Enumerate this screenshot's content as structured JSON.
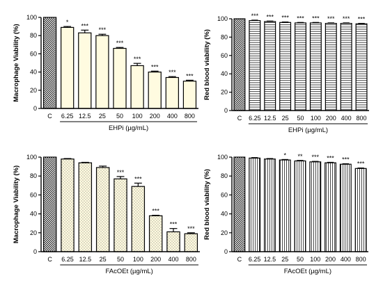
{
  "chart_data": [
    {
      "type": "bar",
      "categories": [
        "C",
        "6.25",
        "12.5",
        "25",
        "50",
        "100",
        "200",
        "400",
        "800"
      ],
      "values": [
        100,
        89,
        83,
        80,
        66,
        47,
        40,
        34,
        30
      ],
      "errors": [
        0,
        1,
        3,
        1.5,
        1,
        2.5,
        1,
        1,
        1
      ],
      "significance": [
        "",
        "*",
        "***",
        "***",
        "***",
        "***",
        "***",
        "***",
        "***"
      ],
      "xlabel": "EHPi (µg/mL)",
      "ylabel": "Macrophage Viability (%)",
      "ylim": [
        0,
        100
      ],
      "yticks": [
        "0",
        "20",
        "40",
        "60",
        "80",
        "100"
      ],
      "control_pattern": "crosshatch",
      "bar_pattern": "plain-cream",
      "grid": false
    },
    {
      "type": "bar",
      "categories": [
        "C",
        "6.25",
        "12.5",
        "25",
        "50",
        "100",
        "200",
        "400",
        "800"
      ],
      "values": [
        100,
        98,
        97,
        96,
        95.5,
        95.5,
        95,
        95,
        94.5
      ],
      "errors": [
        0,
        0.5,
        0.5,
        0.5,
        0.5,
        0.5,
        0.5,
        0.5,
        0.5
      ],
      "significance": [
        "",
        "***",
        "***",
        "***",
        "***",
        "***",
        "***",
        "***",
        "***"
      ],
      "xlabel": "EHPi (µg/mL)",
      "ylabel": "Red blood viability (%)",
      "ylim": [
        0,
        100
      ],
      "yticks": [
        "0",
        "20",
        "40",
        "60",
        "80",
        "100"
      ],
      "control_pattern": "crosshatch",
      "bar_pattern": "horizontal-lines",
      "grid": false
    },
    {
      "type": "bar",
      "categories": [
        "C",
        "6.25",
        "12.5",
        "25",
        "50",
        "100",
        "200",
        "400",
        "800"
      ],
      "values": [
        100,
        98,
        94,
        89,
        77,
        69,
        38,
        21,
        19
      ],
      "errors": [
        0,
        0.5,
        0.5,
        1.5,
        2.5,
        3.5,
        0.5,
        3.5,
        1
      ],
      "significance": [
        "",
        "",
        "",
        "",
        "***",
        "***",
        "***",
        "***",
        "***"
      ],
      "xlabel": "FAcOEt (µg/mL)",
      "ylabel": "Macrophage Viability (%)",
      "ylim": [
        0,
        100
      ],
      "yticks": [
        "0",
        "20",
        "40",
        "60",
        "80",
        "100"
      ],
      "control_pattern": "crosshatch",
      "bar_pattern": "dotted-cream",
      "grid": false
    },
    {
      "type": "bar",
      "categories": [
        "C",
        "6.25",
        "12.5",
        "25",
        "50",
        "100",
        "200",
        "400",
        "800"
      ],
      "values": [
        100,
        99,
        98,
        97,
        96,
        95,
        94,
        92.5,
        88
      ],
      "errors": [
        0,
        0.5,
        0.5,
        0.5,
        0.5,
        0.5,
        0.5,
        0.5,
        0.5
      ],
      "significance": [
        "",
        "",
        "",
        "*",
        "**",
        "***",
        "***",
        "***",
        "***"
      ],
      "xlabel": "FAcOEt (µg/mL)",
      "ylabel": "Red blood viability (%)",
      "ylim": [
        0,
        100
      ],
      "yticks": [
        "0",
        "20",
        "40",
        "60",
        "80",
        "100"
      ],
      "control_pattern": "crosshatch",
      "bar_pattern": "vertical-lines",
      "grid": false
    }
  ]
}
